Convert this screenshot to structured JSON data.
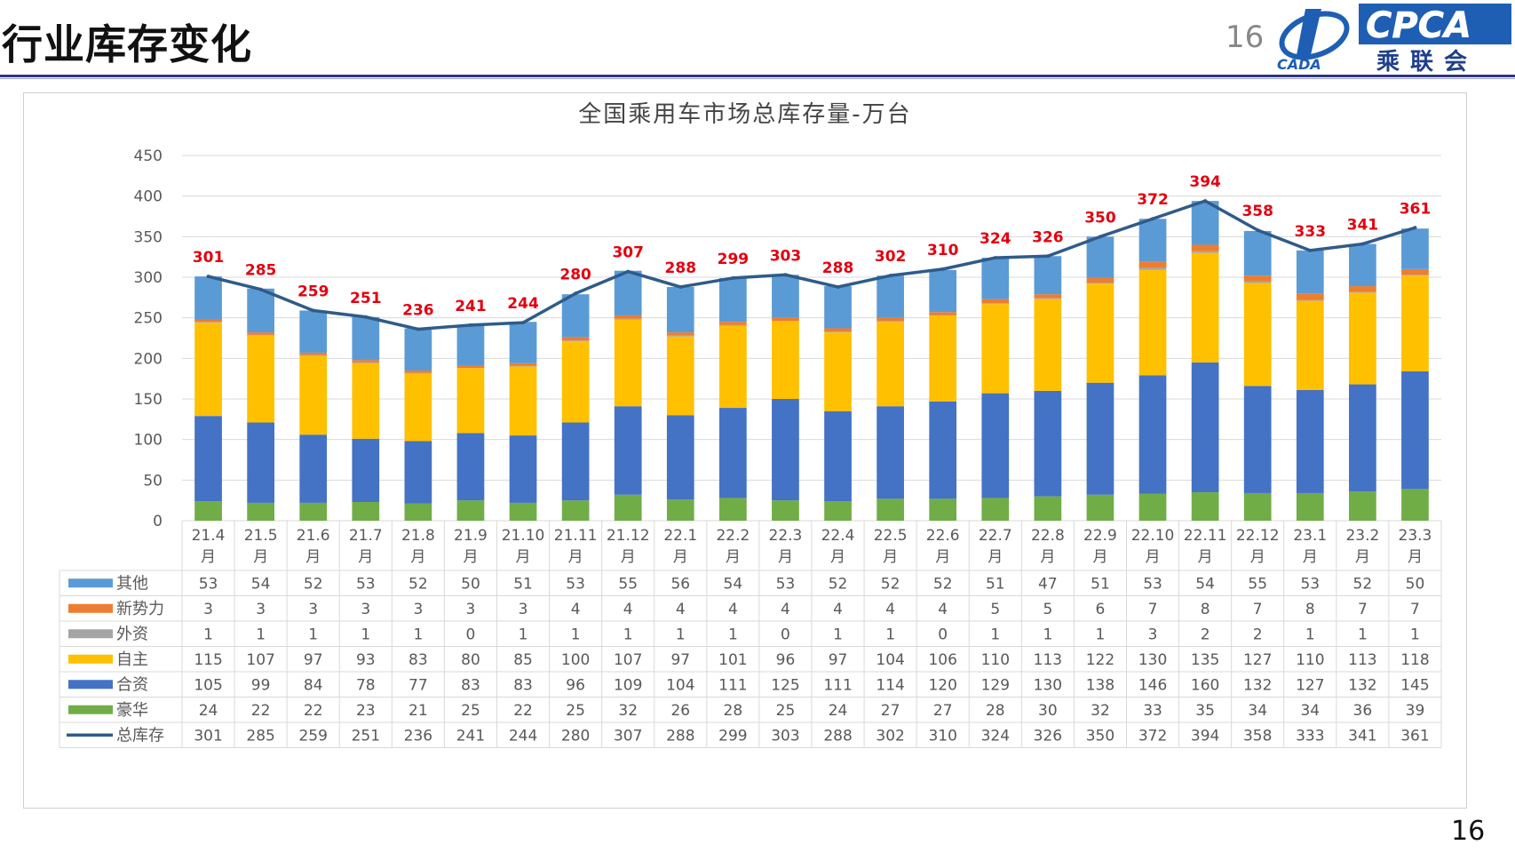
{
  "page": {
    "title": "行业库存变化",
    "page_number_top": "16",
    "page_number_bottom": "16",
    "logo": {
      "brand": "CPCA",
      "brand_cn": "乘联会",
      "sub": "CADA"
    }
  },
  "colors": {
    "其他": "#5b9bd5",
    "新势力": "#ed7d31",
    "外资": "#a5a5a5",
    "自主": "#ffc000",
    "合资": "#4472c4",
    "豪华": "#70ad47",
    "总库存": "#2f5b8a",
    "label_red": "#e3000f",
    "accent_rule": "#2d3485"
  },
  "chart_data": {
    "type": "bar",
    "stacked": true,
    "title": "全国乘用车市场总库存量-万台",
    "ylim": [
      0,
      450
    ],
    "yticks": [
      0,
      50,
      100,
      150,
      200,
      250,
      300,
      350,
      400,
      450
    ],
    "grid": true,
    "legend": "in data table rows",
    "categories": [
      "21.4\n月",
      "21.5\n月",
      "21.6\n月",
      "21.7\n月",
      "21.8\n月",
      "21.9\n月",
      "21.10\n月",
      "21.11\n月",
      "21.12\n月",
      "22.1\n月",
      "22.2\n月",
      "22.3\n月",
      "22.4\n月",
      "22.5\n月",
      "22.6\n月",
      "22.7\n月",
      "22.8\n月",
      "22.9\n月",
      "22.10\n月",
      "22.11\n月",
      "22.12\n月",
      "23.1\n月",
      "23.2\n月",
      "23.3\n月"
    ],
    "series": [
      {
        "name": "豪华",
        "values": [
          24,
          22,
          22,
          23,
          21,
          25,
          22,
          25,
          32,
          26,
          28,
          25,
          24,
          27,
          27,
          28,
          30,
          32,
          33,
          35,
          34,
          34,
          36,
          39
        ]
      },
      {
        "name": "合资",
        "values": [
          105,
          99,
          84,
          78,
          77,
          83,
          83,
          96,
          109,
          104,
          111,
          125,
          111,
          114,
          120,
          129,
          130,
          138,
          146,
          160,
          132,
          127,
          132,
          145
        ]
      },
      {
        "name": "自主",
        "values": [
          115,
          107,
          97,
          93,
          83,
          80,
          85,
          100,
          107,
          97,
          101,
          96,
          97,
          104,
          106,
          110,
          113,
          122,
          130,
          135,
          127,
          110,
          113,
          118
        ]
      },
      {
        "name": "外资",
        "values": [
          1,
          1,
          1,
          1,
          1,
          0,
          1,
          1,
          1,
          1,
          1,
          0,
          1,
          1,
          0,
          1,
          1,
          1,
          3,
          2,
          2,
          1,
          1,
          1
        ]
      },
      {
        "name": "新势力",
        "values": [
          3,
          3,
          3,
          3,
          3,
          3,
          3,
          4,
          4,
          4,
          4,
          4,
          4,
          4,
          4,
          5,
          5,
          6,
          7,
          8,
          7,
          8,
          7,
          7
        ]
      },
      {
        "name": "其他",
        "values": [
          53,
          54,
          52,
          53,
          52,
          50,
          51,
          53,
          55,
          56,
          54,
          53,
          52,
          52,
          52,
          51,
          47,
          51,
          53,
          54,
          55,
          53,
          52,
          50
        ]
      }
    ],
    "line": {
      "name": "总库存",
      "values": [
        301,
        285,
        259,
        251,
        236,
        241,
        244,
        280,
        307,
        288,
        299,
        303,
        288,
        302,
        310,
        324,
        326,
        350,
        372,
        394,
        358,
        333,
        341,
        361
      ]
    },
    "table_row_order": [
      "其他",
      "新势力",
      "外资",
      "自主",
      "合资",
      "豪华",
      "总库存"
    ]
  }
}
